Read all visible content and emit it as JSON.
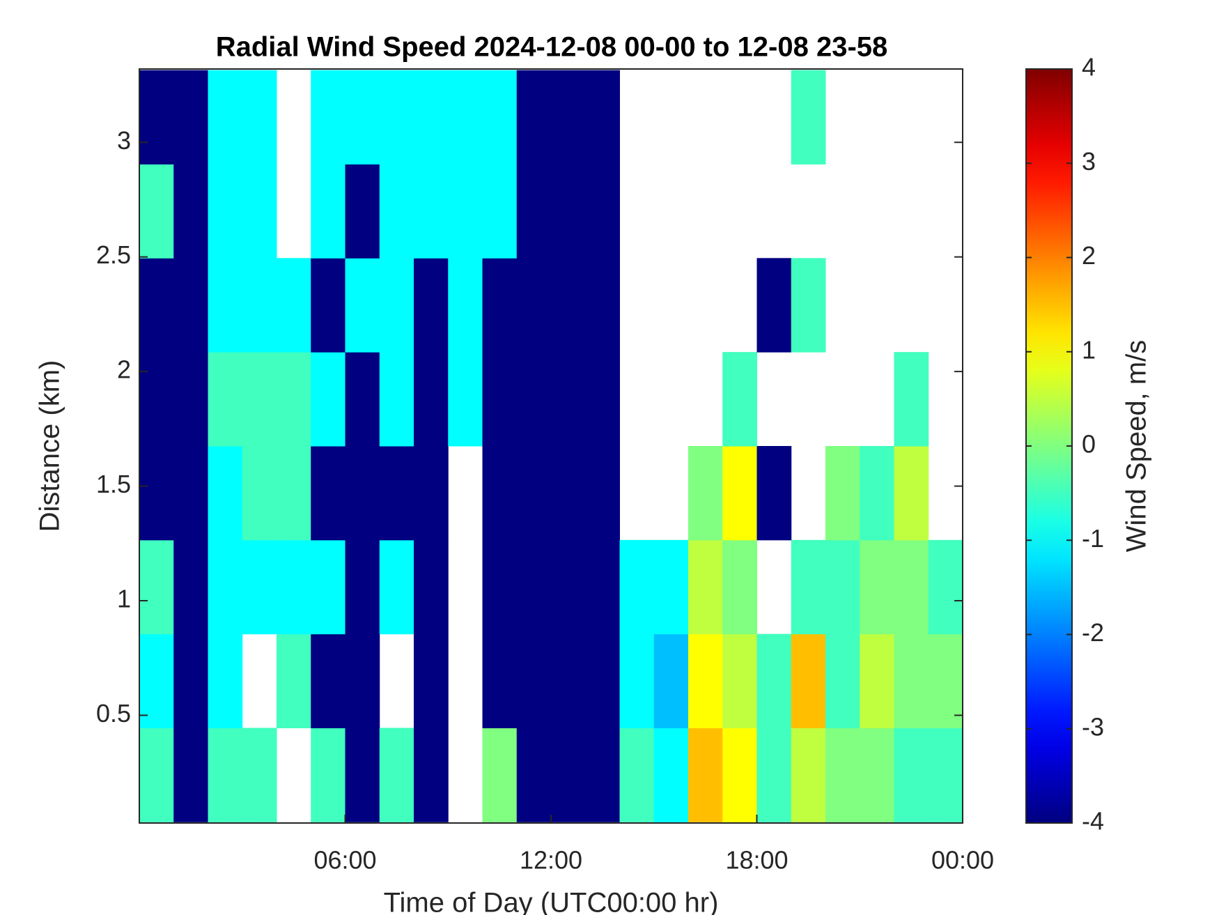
{
  "chart_data": {
    "type": "heatmap",
    "title": "Radial Wind Speed 2024-12-08 00-00 to 12-08 23-58",
    "x_label": "Time of Day (UTC00:00 hr)",
    "y_label": "Distance (km)",
    "colorbar_label": "Wind Speed, m/s",
    "colormap": "jet",
    "clim": [
      -4,
      4
    ],
    "colorbar_ticks": [
      -4,
      -3,
      -2,
      -1,
      0,
      1,
      2,
      3,
      4
    ],
    "xlim": [
      0,
      24
    ],
    "xticks": [
      {
        "value": 6,
        "label": "06:00"
      },
      {
        "value": 12,
        "label": "12:00"
      },
      {
        "value": 18,
        "label": "18:00"
      },
      {
        "value": 24,
        "label": "00:00"
      }
    ],
    "ylim": [
      0.03,
      3.32
    ],
    "yticks": [
      0.5,
      1,
      1.5,
      2,
      2.5,
      3
    ],
    "x": [
      0.5,
      1.5,
      2.5,
      3.5,
      4.5,
      5.5,
      6.5,
      7.5,
      8.5,
      9.5,
      10.5,
      11.5,
      12.5,
      13.5,
      14.5,
      15.5,
      16.5,
      17.5,
      18.5,
      19.5,
      20.5,
      21.5,
      22.5,
      23.5
    ],
    "y": [
      0.24,
      0.65,
      1.06,
      1.47,
      1.88,
      2.29,
      2.7,
      3.11
    ],
    "values": [
      [
        -0.5,
        -4,
        -0.5,
        -0.5,
        null,
        -0.5,
        -4,
        -0.5,
        -4,
        null,
        0,
        -4,
        -4,
        -4,
        -0.5,
        -1,
        1.5,
        1,
        -0.5,
        0.5,
        0,
        0,
        -0.5,
        -0.5
      ],
      [
        -1,
        -4,
        -1,
        null,
        -0.5,
        -4,
        -4,
        null,
        -4,
        null,
        -4,
        -4,
        -4,
        -4,
        -1,
        -1.5,
        1,
        0.5,
        -0.5,
        1.5,
        -0.5,
        0.5,
        0,
        0
      ],
      [
        -0.5,
        -4,
        -1,
        -1,
        -1,
        -1,
        -4,
        -1,
        -4,
        null,
        -4,
        -4,
        -4,
        -4,
        -1,
        -1,
        0.5,
        0,
        null,
        -0.5,
        -0.5,
        0,
        0,
        -0.5
      ],
      [
        -4,
        -4,
        -1,
        -0.5,
        -0.5,
        -4,
        -4,
        -4,
        -4,
        null,
        -4,
        -4,
        -4,
        -4,
        null,
        null,
        0,
        1,
        -4,
        null,
        0,
        -0.5,
        0.5,
        null
      ],
      [
        -4,
        -4,
        -0.5,
        -0.5,
        -0.5,
        -1,
        -4,
        -1,
        -4,
        -1,
        -4,
        -4,
        -4,
        -4,
        null,
        null,
        null,
        -0.5,
        null,
        null,
        null,
        null,
        -0.5,
        null
      ],
      [
        -4,
        -4,
        -1,
        -1,
        -1,
        -4,
        -1,
        -1,
        -4,
        -1,
        -4,
        -4,
        -4,
        -4,
        null,
        null,
        null,
        null,
        -4,
        -0.5,
        null,
        null,
        null,
        null
      ],
      [
        -0.5,
        -4,
        -1,
        -1,
        null,
        -1,
        -4,
        -1,
        -1,
        -1,
        -1,
        -4,
        -4,
        -4,
        null,
        null,
        null,
        null,
        null,
        null,
        null,
        null,
        null,
        null
      ],
      [
        -4,
        -4,
        -1,
        -1,
        null,
        -1,
        -1,
        -1,
        -1,
        -1,
        -1,
        -4,
        -4,
        -4,
        null,
        null,
        null,
        null,
        null,
        -0.5,
        null,
        null,
        null,
        null
      ]
    ]
  }
}
